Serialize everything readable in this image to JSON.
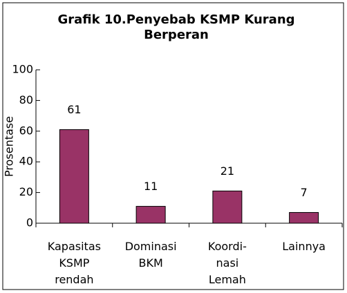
{
  "chart_data": {
    "type": "bar",
    "title": "Grafik 10.Penyebab KSMP Kurang Berperan",
    "y_label": "Prosentase",
    "categories": [
      [
        "Kapasitas",
        "KSMP",
        "rendah"
      ],
      [
        "Dominasi",
        "BKM"
      ],
      [
        "Koordi-",
        "nasi",
        "Lemah"
      ],
      [
        "Lainnya"
      ]
    ],
    "values": [
      61,
      11,
      21,
      7
    ],
    "color": "#993366",
    "ylim": [
      0,
      100
    ],
    "yticks": [
      0,
      20,
      40,
      60,
      80,
      100
    ]
  }
}
